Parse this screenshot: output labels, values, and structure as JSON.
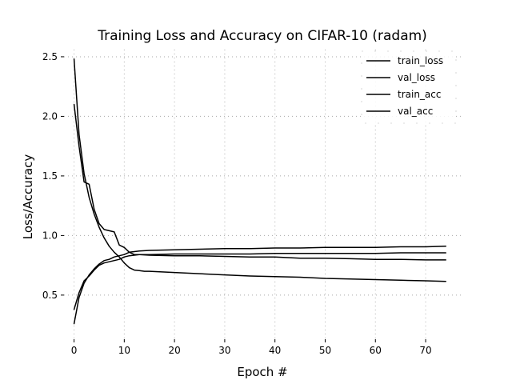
{
  "chart_data": {
    "type": "line",
    "title": "Training Loss and Accuracy on CIFAR-10 (radam)",
    "xlabel": "Epoch #",
    "ylabel": "Loss/Accuracy",
    "xlim": [
      -2,
      77
    ],
    "ylim": [
      0.13,
      2.56
    ],
    "xticks": [
      0,
      10,
      20,
      30,
      40,
      50,
      60,
      70
    ],
    "yticks": [
      0.5,
      1.0,
      1.5,
      2.0,
      2.5
    ],
    "xtick_labels": [
      "0",
      "10",
      "20",
      "30",
      "40",
      "50",
      "60",
      "70"
    ],
    "ytick_labels": [
      "0.5",
      "1.0",
      "1.5",
      "2.0",
      "2.5"
    ],
    "grid": true,
    "legend_position": "top-right",
    "colors": {
      "line": "#000000",
      "grid": "#aaaaaa",
      "background": "#ffffff"
    },
    "series": [
      {
        "name": "train_loss",
        "x": [
          0,
          1,
          2,
          3,
          4,
          5,
          6,
          7,
          8,
          9,
          10,
          11,
          12,
          13,
          14,
          15,
          20,
          25,
          30,
          35,
          40,
          45,
          50,
          55,
          60,
          65,
          70,
          74
        ],
        "y": [
          2.48,
          1.85,
          1.52,
          1.32,
          1.18,
          1.07,
          0.98,
          0.91,
          0.86,
          0.82,
          0.77,
          0.73,
          0.71,
          0.705,
          0.7,
          0.7,
          0.69,
          0.68,
          0.67,
          0.66,
          0.655,
          0.65,
          0.64,
          0.635,
          0.63,
          0.625,
          0.62,
          0.615
        ]
      },
      {
        "name": "val_loss",
        "x": [
          0,
          1,
          2,
          3,
          4,
          5,
          6,
          7,
          8,
          9,
          10,
          11,
          12,
          13,
          15,
          20,
          25,
          30,
          35,
          40,
          45,
          50,
          55,
          60,
          65,
          70,
          74
        ],
        "y": [
          2.1,
          1.75,
          1.45,
          1.43,
          1.22,
          1.1,
          1.05,
          1.04,
          1.03,
          0.92,
          0.9,
          0.86,
          0.84,
          0.84,
          0.835,
          0.83,
          0.83,
          0.825,
          0.82,
          0.82,
          0.81,
          0.81,
          0.805,
          0.8,
          0.8,
          0.795,
          0.795
        ]
      },
      {
        "name": "train_acc",
        "x": [
          0,
          1,
          2,
          3,
          4,
          5,
          6,
          7,
          8,
          9,
          10,
          11,
          12,
          13,
          15,
          20,
          25,
          30,
          35,
          40,
          45,
          50,
          55,
          60,
          65,
          70,
          74
        ],
        "y": [
          0.26,
          0.48,
          0.6,
          0.67,
          0.72,
          0.76,
          0.79,
          0.8,
          0.82,
          0.83,
          0.84,
          0.86,
          0.865,
          0.87,
          0.875,
          0.88,
          0.885,
          0.89,
          0.89,
          0.895,
          0.895,
          0.9,
          0.9,
          0.9,
          0.905,
          0.905,
          0.91
        ]
      },
      {
        "name": "val_acc",
        "x": [
          0,
          1,
          2,
          3,
          4,
          5,
          6,
          7,
          8,
          9,
          10,
          11,
          12,
          13,
          15,
          20,
          25,
          30,
          35,
          40,
          45,
          50,
          55,
          60,
          65,
          70,
          74
        ],
        "y": [
          0.38,
          0.52,
          0.62,
          0.66,
          0.71,
          0.75,
          0.77,
          0.78,
          0.79,
          0.8,
          0.82,
          0.83,
          0.835,
          0.84,
          0.84,
          0.845,
          0.845,
          0.845,
          0.845,
          0.85,
          0.85,
          0.85,
          0.85,
          0.85,
          0.855,
          0.855,
          0.855
        ]
      }
    ]
  }
}
